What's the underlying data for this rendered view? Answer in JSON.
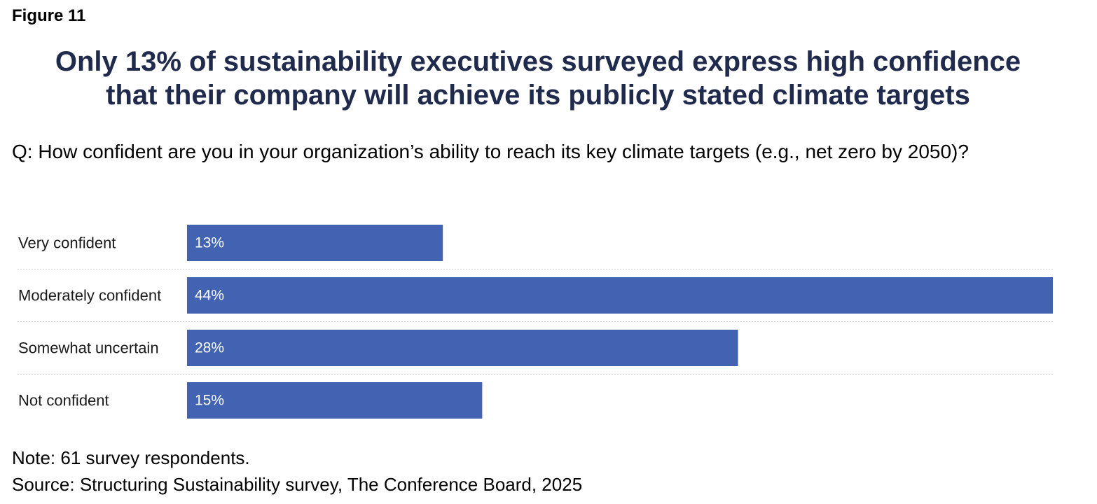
{
  "figure_label": "Figure 11",
  "title_line1": "Only 13% of sustainability executives surveyed express high confidence",
  "title_line2": "that their company will achieve its publicly stated climate targets",
  "question": "Q: How confident are you in your organization’s ability to reach its key climate targets (e.g., net zero by 2050)?",
  "note": "Note: 61 survey respondents.",
  "source": "Source: Structuring Sustainability survey, The Conference Board, 2025",
  "chart_data": {
    "type": "bar",
    "orientation": "horizontal",
    "title": "",
    "xlabel": "",
    "ylabel": "",
    "categories": [
      "Very confident",
      "Moderately confident",
      "Somewhat uncertain",
      "Not confident"
    ],
    "values": [
      13,
      44,
      28,
      15
    ],
    "value_labels": [
      "13%",
      "44%",
      "28%",
      "15%"
    ],
    "xlim": [
      0,
      44
    ],
    "grid": false,
    "legend": "none",
    "colors": {
      "bar": "#4263b2",
      "bar_label": "#ffffff",
      "separator": "#c8c8c8"
    }
  }
}
